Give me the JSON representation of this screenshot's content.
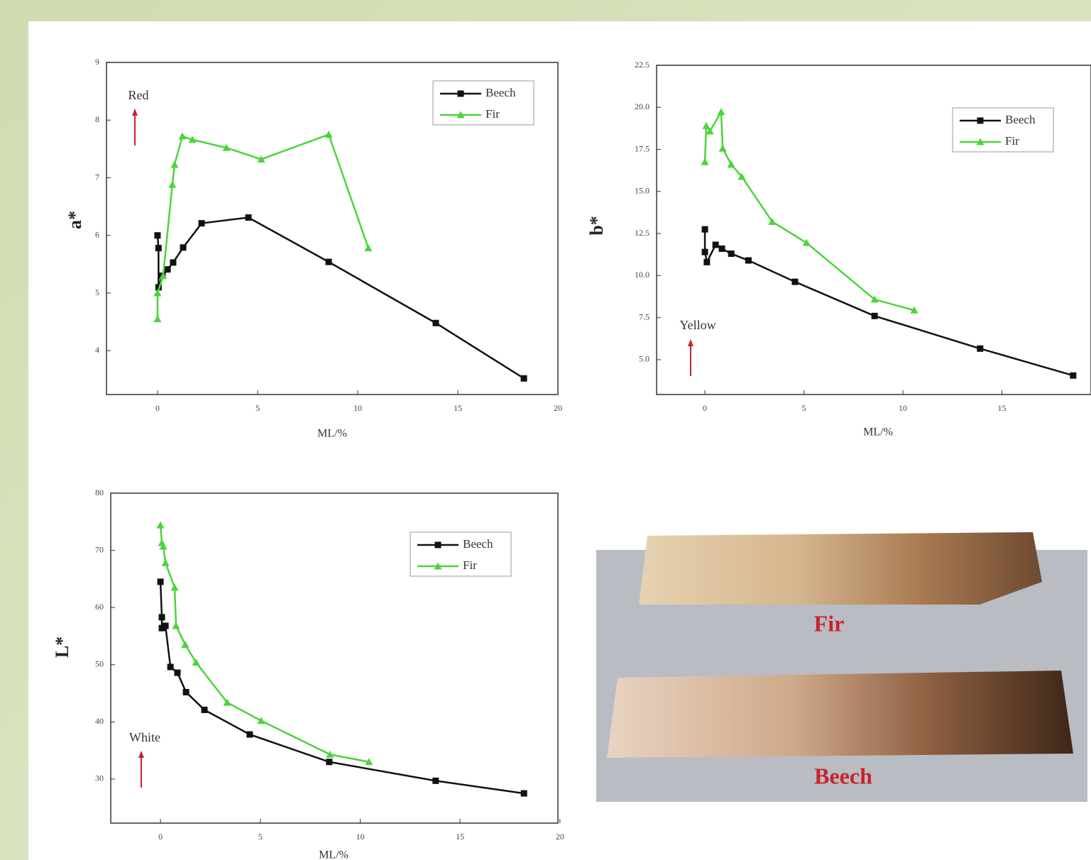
{
  "chart_data": [
    {
      "type": "line",
      "ylabel": "a*",
      "xlabel": "ML/%",
      "annotation": "Red",
      "xlim": [
        -2.55,
        20
      ],
      "xticks": [
        0,
        5,
        10,
        15,
        20
      ],
      "ylim": [
        3.24,
        9
      ],
      "yticks": [
        4,
        5,
        6,
        7,
        8,
        9
      ],
      "grid": false,
      "legend": "upper right",
      "series": [
        {
          "name": "Beech",
          "color": "#111111",
          "marker": "square",
          "x": [
            0,
            0.05,
            0.05,
            0.25,
            0.5,
            0.78,
            1.28,
            2.2,
            4.54,
            8.55,
            13.9,
            18.3
          ],
          "values": [
            6.0,
            5.78,
            5.1,
            5.3,
            5.41,
            5.53,
            5.79,
            6.21,
            6.31,
            5.54,
            4.48,
            3.52
          ]
        },
        {
          "name": "Fir",
          "color": "#4cd43c",
          "marker": "triangle",
          "x": [
            0,
            0,
            0.28,
            0.74,
            0.85,
            1.24,
            1.74,
            3.44,
            5.18,
            8.55,
            10.53
          ],
          "values": [
            4.55,
            5.0,
            5.3,
            6.88,
            7.23,
            7.72,
            7.66,
            7.52,
            7.32,
            7.75,
            5.78
          ]
        }
      ]
    },
    {
      "type": "line",
      "ylabel": "b*",
      "xlabel": "ML/%",
      "annotation": "Yellow",
      "xlim": [
        -2.44,
        19.5
      ],
      "xticks": [
        0,
        5,
        10,
        15
      ],
      "ylim": [
        2.93,
        22.5
      ],
      "yticks": [
        {
          "value": 5,
          "label": "5.0"
        },
        7.5,
        {
          "value": 10,
          "label": "10.0"
        },
        12.5,
        {
          "value": 15,
          "label": "15.0"
        },
        17.5,
        {
          "value": 20,
          "label": "20.0"
        },
        22.5
      ],
      "grid": false,
      "legend": "upper right",
      "series": [
        {
          "name": "Beech",
          "color": "#111111",
          "marker": "square",
          "x": [
            0,
            0,
            0.1,
            0.54,
            0.86,
            1.33,
            2.2,
            4.55,
            8.57,
            13.9,
            18.6
          ],
          "values": [
            12.75,
            11.4,
            10.8,
            11.83,
            11.6,
            11.3,
            10.9,
            9.63,
            7.6,
            5.66,
            4.06
          ]
        },
        {
          "name": "Fir",
          "color": "#4cd43c",
          "marker": "triangle",
          "x": [
            0,
            0.07,
            0.25,
            0.82,
            0.9,
            1.33,
            1.86,
            3.4,
            5.13,
            8.57,
            10.57
          ],
          "values": [
            16.76,
            18.9,
            18.58,
            19.72,
            17.56,
            16.6,
            15.88,
            13.2,
            11.95,
            8.58,
            7.94
          ]
        }
      ]
    },
    {
      "type": "line",
      "ylabel": "L*",
      "xlabel": "ML/%",
      "annotation": "White",
      "xlim": [
        -2.49,
        19.9
      ],
      "xticks": [
        0,
        5,
        10,
        15,
        20
      ],
      "ylim": [
        22.3,
        80
      ],
      "yticks": [
        30,
        40,
        50,
        60,
        70,
        80
      ],
      "grid": false,
      "legend": "upper right",
      "series": [
        {
          "name": "Beech",
          "color": "#111111",
          "marker": "square",
          "x": [
            0,
            0.07,
            0.07,
            0.25,
            0.5,
            0.85,
            1.28,
            2.2,
            4.47,
            8.45,
            13.78,
            18.2
          ],
          "values": [
            64.5,
            58.3,
            56.4,
            56.8,
            49.6,
            48.6,
            45.2,
            42.1,
            37.8,
            33.0,
            29.7,
            27.5
          ]
        },
        {
          "name": "Fir",
          "color": "#4cd43c",
          "marker": "triangle",
          "x": [
            0,
            0.07,
            0.14,
            0.25,
            0.71,
            0.78,
            1.24,
            1.78,
            3.34,
            5.04,
            8.49,
            10.44
          ],
          "values": [
            74.4,
            71.3,
            70.7,
            67.8,
            63.5,
            56.8,
            53.5,
            50.4,
            43.4,
            40.2,
            34.3,
            33.0
          ]
        }
      ]
    }
  ],
  "photo": {
    "labels": [
      "Fir",
      "Beech"
    ]
  }
}
